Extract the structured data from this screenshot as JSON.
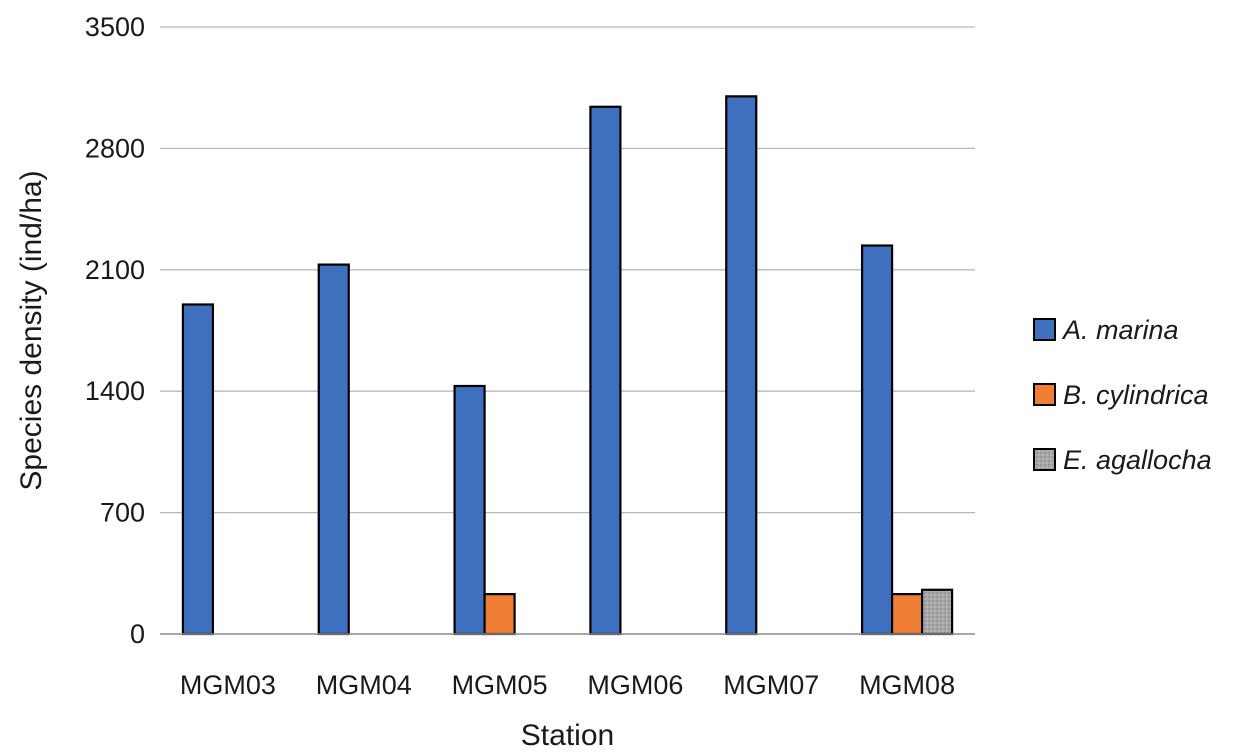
{
  "chart_data": {
    "type": "bar",
    "title": "",
    "xlabel": "Station",
    "ylabel": "Species density (ind/ha)",
    "categories": [
      "MGM03",
      "MGM04",
      "MGM05",
      "MGM06",
      "MGM07",
      "MGM08"
    ],
    "yticks": [
      "0",
      "700",
      "1400",
      "2100",
      "2800",
      "3500"
    ],
    "ylim": [
      0,
      3500
    ],
    "grid": true,
    "legend_position": "right",
    "series": [
      {
        "name": "A. marina",
        "color": "#3f6fbf",
        "values": [
          1900,
          2130,
          1430,
          3040,
          3100,
          2240
        ]
      },
      {
        "name": "B. cylindrica",
        "color": "#f07f35",
        "values": [
          0,
          0,
          230,
          0,
          0,
          230
        ]
      },
      {
        "name": "E. agallocha",
        "color": "#a7a7a7",
        "values": [
          0,
          0,
          0,
          0,
          0,
          255
        ]
      }
    ]
  }
}
